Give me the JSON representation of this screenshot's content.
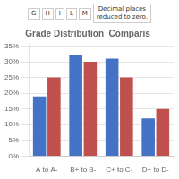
{
  "chart_data": {
    "type": "bar",
    "title": "Grade Distribution  Comparis",
    "categories": [
      "A to A-",
      "B+ to B-",
      "C+ to C-",
      "D+ to D-"
    ],
    "series": [
      {
        "color": "#4472C4",
        "values": [
          19,
          32,
          31,
          12
        ]
      },
      {
        "color": "#C0504D",
        "values": [
          25,
          30,
          25,
          15
        ]
      }
    ],
    "ylim": [
      0,
      36
    ],
    "yticks": [
      {
        "value": 0,
        "label": "0%"
      },
      {
        "value": 5,
        "label": "5%"
      },
      {
        "value": 10,
        "label": "10%"
      },
      {
        "value": 15,
        "label": "15%"
      },
      {
        "value": 20,
        "label": "20%"
      },
      {
        "value": 25,
        "label": "25%"
      },
      {
        "value": 30,
        "label": "30%"
      },
      {
        "value": 35,
        "label": "35%"
      }
    ],
    "grid": true,
    "annotations": [
      "G",
      "H",
      "I",
      "L",
      "M",
      "Decimal places\nreduced to zero."
    ]
  }
}
